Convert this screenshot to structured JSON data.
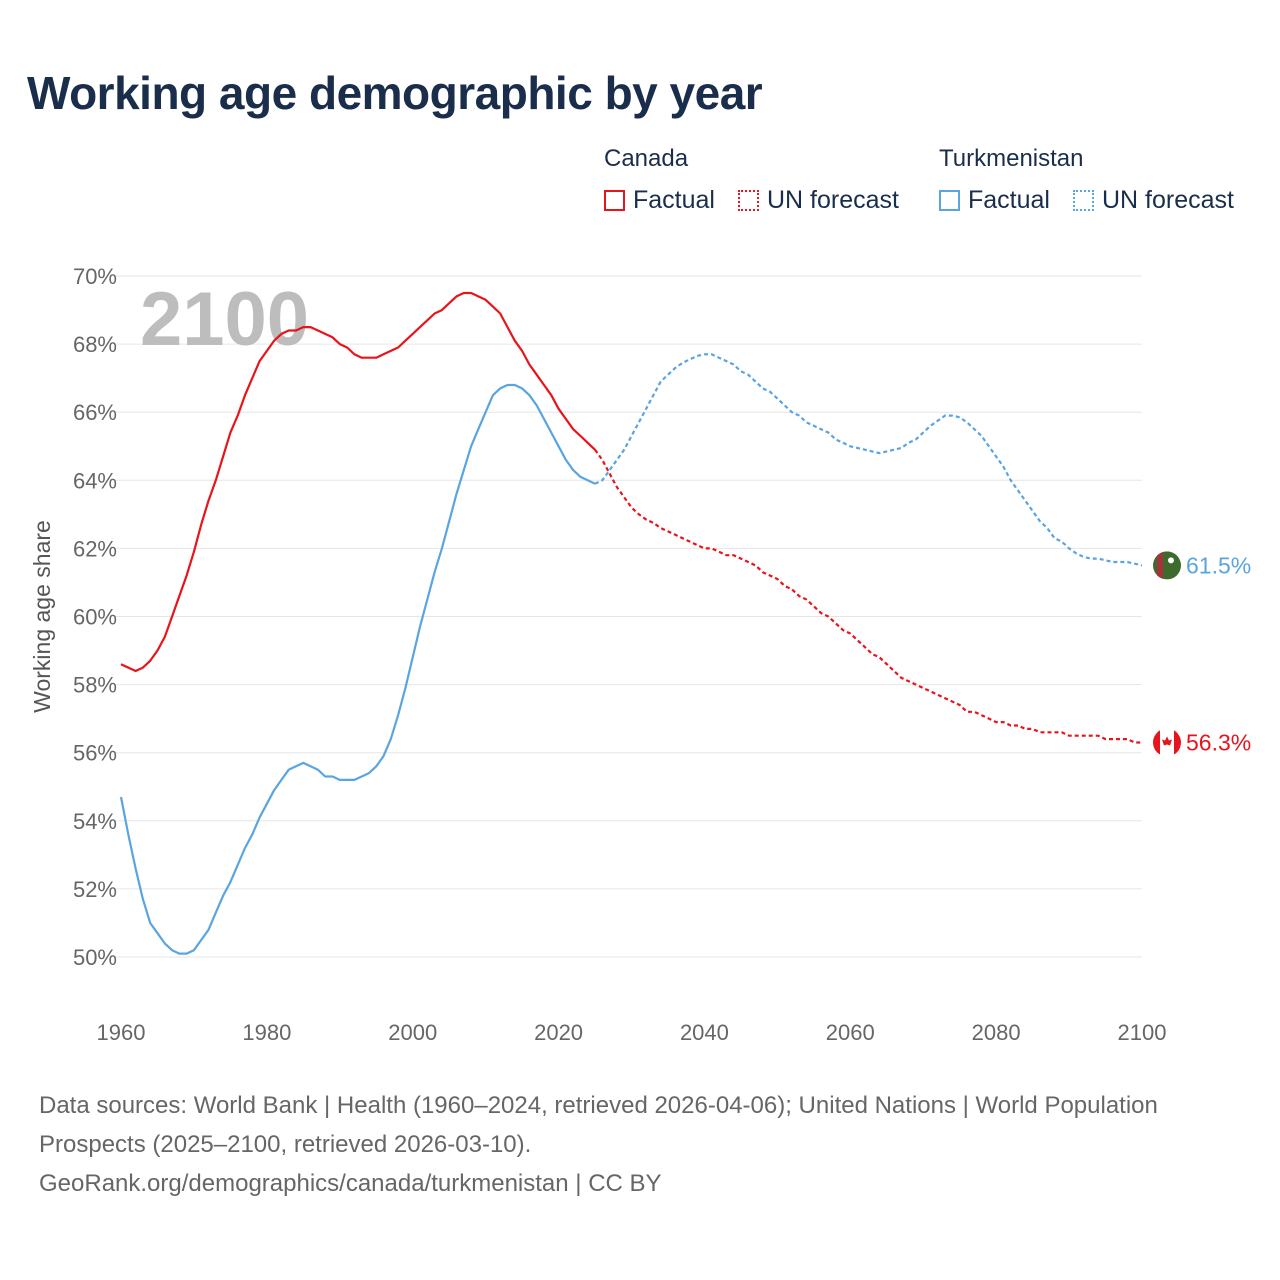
{
  "title": "Working age demographic by year",
  "legend": {
    "groups": [
      {
        "name": "Canada",
        "factual": "Factual",
        "forecast": "UN forecast"
      },
      {
        "name": "Turkmenistan",
        "factual": "Factual",
        "forecast": "UN forecast"
      }
    ]
  },
  "footer": {
    "sources": "Data sources: World Bank | Health (1960–2024, retrieved 2026-04-06); United Nations | World Population Prospects (2025–2100, retrieved 2026-03-10).",
    "link": "GeoRank.org/demographics/canada/turkmenistan | CC BY"
  },
  "colors": {
    "canada": "#e8141c",
    "turkmenistan": "#5aa4e0",
    "grid": "#e6e6e6"
  },
  "chart_data": {
    "type": "line",
    "title": "Working age demographic by year",
    "ylabel": "Working age share",
    "xlabel": "",
    "year_display": "2100",
    "xlim": [
      1960,
      2100
    ],
    "ylim": [
      50,
      70
    ],
    "x_ticks": [
      "1960",
      "1980",
      "2000",
      "2020",
      "2040",
      "2060",
      "2080",
      "2100"
    ],
    "y_ticks": [
      "50%",
      "52%",
      "54%",
      "56%",
      "58%",
      "60%",
      "62%",
      "64%",
      "66%",
      "68%",
      "70%"
    ],
    "forecast_start": 2025,
    "series": [
      {
        "name": "Canada",
        "color": "#e8141c",
        "end_label": "56.3%",
        "points": [
          [
            1960,
            58.6
          ],
          [
            1961,
            58.5
          ],
          [
            1962,
            58.4
          ],
          [
            1963,
            58.5
          ],
          [
            1964,
            58.7
          ],
          [
            1965,
            59.0
          ],
          [
            1966,
            59.4
          ],
          [
            1967,
            60.0
          ],
          [
            1968,
            60.6
          ],
          [
            1969,
            61.2
          ],
          [
            1970,
            61.9
          ],
          [
            1971,
            62.7
          ],
          [
            1972,
            63.4
          ],
          [
            1973,
            64.0
          ],
          [
            1974,
            64.7
          ],
          [
            1975,
            65.4
          ],
          [
            1976,
            65.9
          ],
          [
            1977,
            66.5
          ],
          [
            1978,
            67.0
          ],
          [
            1979,
            67.5
          ],
          [
            1980,
            67.8
          ],
          [
            1981,
            68.1
          ],
          [
            1982,
            68.3
          ],
          [
            1983,
            68.4
          ],
          [
            1984,
            68.4
          ],
          [
            1985,
            68.5
          ],
          [
            1986,
            68.5
          ],
          [
            1987,
            68.4
          ],
          [
            1988,
            68.3
          ],
          [
            1989,
            68.2
          ],
          [
            1990,
            68.0
          ],
          [
            1991,
            67.9
          ],
          [
            1992,
            67.7
          ],
          [
            1993,
            67.6
          ],
          [
            1994,
            67.6
          ],
          [
            1995,
            67.6
          ],
          [
            1996,
            67.7
          ],
          [
            1997,
            67.8
          ],
          [
            1998,
            67.9
          ],
          [
            1999,
            68.1
          ],
          [
            2000,
            68.3
          ],
          [
            2001,
            68.5
          ],
          [
            2002,
            68.7
          ],
          [
            2003,
            68.9
          ],
          [
            2004,
            69.0
          ],
          [
            2005,
            69.2
          ],
          [
            2006,
            69.4
          ],
          [
            2007,
            69.5
          ],
          [
            2008,
            69.5
          ],
          [
            2009,
            69.4
          ],
          [
            2010,
            69.3
          ],
          [
            2011,
            69.1
          ],
          [
            2012,
            68.9
          ],
          [
            2013,
            68.5
          ],
          [
            2014,
            68.1
          ],
          [
            2015,
            67.8
          ],
          [
            2016,
            67.4
          ],
          [
            2017,
            67.1
          ],
          [
            2018,
            66.8
          ],
          [
            2019,
            66.5
          ],
          [
            2020,
            66.1
          ],
          [
            2021,
            65.8
          ],
          [
            2022,
            65.5
          ],
          [
            2023,
            65.3
          ],
          [
            2024,
            65.1
          ],
          [
            2025,
            64.9
          ],
          [
            2026,
            64.6
          ],
          [
            2027,
            64.2
          ],
          [
            2028,
            63.8
          ],
          [
            2029,
            63.5
          ],
          [
            2030,
            63.2
          ],
          [
            2031,
            63.0
          ],
          [
            2032,
            62.85
          ],
          [
            2033,
            62.75
          ],
          [
            2034,
            62.6
          ],
          [
            2035,
            62.5
          ],
          [
            2036,
            62.4
          ],
          [
            2037,
            62.3
          ],
          [
            2038,
            62.2
          ],
          [
            2039,
            62.1
          ],
          [
            2040,
            62.0
          ],
          [
            2041,
            62.0
          ],
          [
            2042,
            61.9
          ],
          [
            2043,
            61.8
          ],
          [
            2044,
            61.8
          ],
          [
            2045,
            61.7
          ],
          [
            2046,
            61.6
          ],
          [
            2047,
            61.5
          ],
          [
            2048,
            61.3
          ],
          [
            2049,
            61.2
          ],
          [
            2050,
            61.1
          ],
          [
            2051,
            60.9
          ],
          [
            2052,
            60.8
          ],
          [
            2053,
            60.6
          ],
          [
            2054,
            60.5
          ],
          [
            2055,
            60.3
          ],
          [
            2056,
            60.1
          ],
          [
            2057,
            60.0
          ],
          [
            2058,
            59.8
          ],
          [
            2059,
            59.6
          ],
          [
            2060,
            59.5
          ],
          [
            2061,
            59.3
          ],
          [
            2062,
            59.1
          ],
          [
            2063,
            58.9
          ],
          [
            2064,
            58.8
          ],
          [
            2065,
            58.6
          ],
          [
            2066,
            58.4
          ],
          [
            2067,
            58.2
          ],
          [
            2068,
            58.1
          ],
          [
            2069,
            58.0
          ],
          [
            2070,
            57.9
          ],
          [
            2071,
            57.8
          ],
          [
            2072,
            57.7
          ],
          [
            2073,
            57.6
          ],
          [
            2074,
            57.5
          ],
          [
            2075,
            57.4
          ],
          [
            2076,
            57.2
          ],
          [
            2077,
            57.2
          ],
          [
            2078,
            57.1
          ],
          [
            2079,
            57.0
          ],
          [
            2080,
            56.9
          ],
          [
            2081,
            56.9
          ],
          [
            2082,
            56.8
          ],
          [
            2083,
            56.8
          ],
          [
            2084,
            56.7
          ],
          [
            2085,
            56.7
          ],
          [
            2086,
            56.6
          ],
          [
            2087,
            56.6
          ],
          [
            2088,
            56.6
          ],
          [
            2089,
            56.6
          ],
          [
            2090,
            56.5
          ],
          [
            2091,
            56.5
          ],
          [
            2092,
            56.5
          ],
          [
            2093,
            56.5
          ],
          [
            2094,
            56.5
          ],
          [
            2095,
            56.4
          ],
          [
            2096,
            56.4
          ],
          [
            2097,
            56.4
          ],
          [
            2098,
            56.4
          ],
          [
            2099,
            56.3
          ],
          [
            2100,
            56.3
          ]
        ]
      },
      {
        "name": "Turkmenistan",
        "color": "#5aa4e0",
        "end_label": "61.5%",
        "points": [
          [
            1960,
            54.7
          ],
          [
            1961,
            53.6
          ],
          [
            1962,
            52.6
          ],
          [
            1963,
            51.7
          ],
          [
            1964,
            51.0
          ],
          [
            1965,
            50.7
          ],
          [
            1966,
            50.4
          ],
          [
            1967,
            50.2
          ],
          [
            1968,
            50.1
          ],
          [
            1969,
            50.1
          ],
          [
            1970,
            50.2
          ],
          [
            1971,
            50.5
          ],
          [
            1972,
            50.8
          ],
          [
            1973,
            51.3
          ],
          [
            1974,
            51.8
          ],
          [
            1975,
            52.2
          ],
          [
            1976,
            52.7
          ],
          [
            1977,
            53.2
          ],
          [
            1978,
            53.6
          ],
          [
            1979,
            54.1
          ],
          [
            1980,
            54.5
          ],
          [
            1981,
            54.9
          ],
          [
            1982,
            55.2
          ],
          [
            1983,
            55.5
          ],
          [
            1984,
            55.6
          ],
          [
            1985,
            55.7
          ],
          [
            1986,
            55.6
          ],
          [
            1987,
            55.5
          ],
          [
            1988,
            55.3
          ],
          [
            1989,
            55.3
          ],
          [
            1990,
            55.2
          ],
          [
            1991,
            55.2
          ],
          [
            1992,
            55.2
          ],
          [
            1993,
            55.3
          ],
          [
            1994,
            55.4
          ],
          [
            1995,
            55.6
          ],
          [
            1996,
            55.9
          ],
          [
            1997,
            56.4
          ],
          [
            1998,
            57.1
          ],
          [
            1999,
            57.9
          ],
          [
            2000,
            58.8
          ],
          [
            2001,
            59.7
          ],
          [
            2002,
            60.5
          ],
          [
            2003,
            61.3
          ],
          [
            2004,
            62.0
          ],
          [
            2005,
            62.8
          ],
          [
            2006,
            63.6
          ],
          [
            2007,
            64.3
          ],
          [
            2008,
            65.0
          ],
          [
            2009,
            65.5
          ],
          [
            2010,
            66.0
          ],
          [
            2011,
            66.5
          ],
          [
            2012,
            66.7
          ],
          [
            2013,
            66.8
          ],
          [
            2014,
            66.8
          ],
          [
            2015,
            66.7
          ],
          [
            2016,
            66.5
          ],
          [
            2017,
            66.2
          ],
          [
            2018,
            65.8
          ],
          [
            2019,
            65.4
          ],
          [
            2020,
            65.0
          ],
          [
            2021,
            64.6
          ],
          [
            2022,
            64.3
          ],
          [
            2023,
            64.1
          ],
          [
            2024,
            64.0
          ],
          [
            2025,
            63.9
          ],
          [
            2026,
            64.0
          ],
          [
            2027,
            64.3
          ],
          [
            2028,
            64.6
          ],
          [
            2029,
            64.9
          ],
          [
            2030,
            65.3
          ],
          [
            2031,
            65.7
          ],
          [
            2032,
            66.1
          ],
          [
            2033,
            66.5
          ],
          [
            2034,
            66.9
          ],
          [
            2035,
            67.1
          ],
          [
            2036,
            67.3
          ],
          [
            2037,
            67.45
          ],
          [
            2038,
            67.55
          ],
          [
            2039,
            67.65
          ],
          [
            2040,
            67.7
          ],
          [
            2041,
            67.7
          ],
          [
            2042,
            67.6
          ],
          [
            2043,
            67.5
          ],
          [
            2044,
            67.4
          ],
          [
            2045,
            67.2
          ],
          [
            2046,
            67.1
          ],
          [
            2047,
            66.9
          ],
          [
            2048,
            66.7
          ],
          [
            2049,
            66.6
          ],
          [
            2050,
            66.4
          ],
          [
            2051,
            66.2
          ],
          [
            2052,
            66.0
          ],
          [
            2053,
            65.9
          ],
          [
            2054,
            65.7
          ],
          [
            2055,
            65.6
          ],
          [
            2056,
            65.5
          ],
          [
            2057,
            65.4
          ],
          [
            2058,
            65.2
          ],
          [
            2059,
            65.1
          ],
          [
            2060,
            65.0
          ],
          [
            2061,
            64.95
          ],
          [
            2062,
            64.9
          ],
          [
            2063,
            64.85
          ],
          [
            2064,
            64.8
          ],
          [
            2065,
            64.85
          ],
          [
            2066,
            64.9
          ],
          [
            2067,
            64.95
          ],
          [
            2068,
            65.1
          ],
          [
            2069,
            65.2
          ],
          [
            2070,
            65.4
          ],
          [
            2071,
            65.6
          ],
          [
            2072,
            65.75
          ],
          [
            2073,
            65.9
          ],
          [
            2074,
            65.9
          ],
          [
            2075,
            65.85
          ],
          [
            2076,
            65.7
          ],
          [
            2077,
            65.5
          ],
          [
            2078,
            65.3
          ],
          [
            2079,
            65.0
          ],
          [
            2080,
            64.7
          ],
          [
            2081,
            64.4
          ],
          [
            2082,
            64.0
          ],
          [
            2083,
            63.7
          ],
          [
            2084,
            63.4
          ],
          [
            2085,
            63.1
          ],
          [
            2086,
            62.8
          ],
          [
            2087,
            62.6
          ],
          [
            2088,
            62.3
          ],
          [
            2089,
            62.2
          ],
          [
            2090,
            62.0
          ],
          [
            2091,
            61.85
          ],
          [
            2092,
            61.75
          ],
          [
            2093,
            61.7
          ],
          [
            2094,
            61.7
          ],
          [
            2095,
            61.65
          ],
          [
            2096,
            61.6
          ],
          [
            2097,
            61.6
          ],
          [
            2098,
            61.6
          ],
          [
            2099,
            61.55
          ],
          [
            2100,
            61.5
          ]
        ]
      }
    ]
  }
}
